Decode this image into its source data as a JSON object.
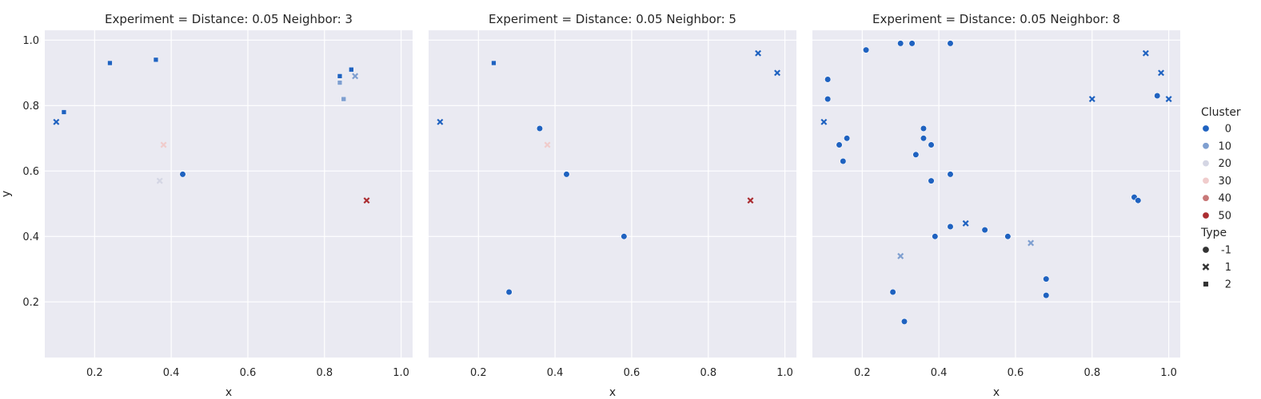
{
  "chart_data": {
    "type": "scatter",
    "hue_title": "Cluster",
    "style_title": "Type",
    "hue_legend": [
      {
        "label": "0",
        "value": 0,
        "color": "#1f62c0"
      },
      {
        "label": "10",
        "value": 10,
        "color": "#7f9fd0"
      },
      {
        "label": "20",
        "value": 20,
        "color": "#d4d6e4"
      },
      {
        "label": "30",
        "value": 30,
        "color": "#f0cccc"
      },
      {
        "label": "40",
        "value": 40,
        "color": "#c87878"
      },
      {
        "label": "50",
        "value": 50,
        "color": "#ab2d31"
      }
    ],
    "style_legend": [
      {
        "label": "-1",
        "marker": "circle"
      },
      {
        "label": "1",
        "marker": "x"
      },
      {
        "label": "2",
        "marker": "square"
      }
    ],
    "xlim": [
      0.07,
      1.03
    ],
    "ylim": [
      0.03,
      1.03
    ],
    "x_ticks": [
      0.2,
      0.4,
      0.6,
      0.8,
      1.0
    ],
    "x_tick_labels": [
      "0.2",
      "0.4",
      "0.6",
      "0.8",
      "1.0"
    ],
    "y_ticks": [
      0.2,
      0.4,
      0.6,
      0.8,
      1.0
    ],
    "y_tick_labels": [
      "0.2",
      "0.4",
      "0.6",
      "0.8",
      "1.0"
    ],
    "xlabel": "x",
    "ylabel": "y",
    "grid": true,
    "legend_placement": "right",
    "panels": [
      {
        "title": "Experiment = Distance: 0.05 Neighbor: 3",
        "points": [
          {
            "x": 0.43,
            "y": 0.59,
            "type": -1,
            "cluster": 0
          },
          {
            "x": 0.1,
            "y": 0.75,
            "type": 1,
            "cluster": 0
          },
          {
            "x": 0.37,
            "y": 0.57,
            "type": 1,
            "cluster": 20
          },
          {
            "x": 0.38,
            "y": 0.68,
            "type": 1,
            "cluster": 30
          },
          {
            "x": 0.91,
            "y": 0.51,
            "type": 1,
            "cluster": 50
          },
          {
            "x": 0.88,
            "y": 0.89,
            "type": 1,
            "cluster": 10
          },
          {
            "x": 0.36,
            "y": 0.94,
            "type": 2,
            "cluster": 0
          },
          {
            "x": 0.24,
            "y": 0.93,
            "type": 2,
            "cluster": 0
          },
          {
            "x": 0.12,
            "y": 0.78,
            "type": 2,
            "cluster": 0
          },
          {
            "x": 0.84,
            "y": 0.89,
            "type": 2,
            "cluster": 0
          },
          {
            "x": 0.84,
            "y": 0.87,
            "type": 2,
            "cluster": 10
          },
          {
            "x": 0.87,
            "y": 0.91,
            "type": 2,
            "cluster": 0
          },
          {
            "x": 0.85,
            "y": 0.82,
            "type": 2,
            "cluster": 10
          }
        ]
      },
      {
        "title": "Experiment = Distance: 0.05 Neighbor: 5",
        "points": [
          {
            "x": 0.43,
            "y": 0.59,
            "type": -1,
            "cluster": 0
          },
          {
            "x": 0.36,
            "y": 0.73,
            "type": -1,
            "cluster": 0
          },
          {
            "x": 0.58,
            "y": 0.4,
            "type": -1,
            "cluster": 0
          },
          {
            "x": 0.28,
            "y": 0.23,
            "type": -1,
            "cluster": 0
          },
          {
            "x": 0.1,
            "y": 0.75,
            "type": 1,
            "cluster": 0
          },
          {
            "x": 0.93,
            "y": 0.96,
            "type": 1,
            "cluster": 0
          },
          {
            "x": 0.98,
            "y": 0.9,
            "type": 1,
            "cluster": 0
          },
          {
            "x": 0.91,
            "y": 0.51,
            "type": 1,
            "cluster": 50
          },
          {
            "x": 0.38,
            "y": 0.68,
            "type": 1,
            "cluster": 30
          },
          {
            "x": 0.24,
            "y": 0.93,
            "type": 2,
            "cluster": 0
          }
        ]
      },
      {
        "title": "Experiment = Distance: 0.05 Neighbor: 8",
        "points": [
          {
            "x": 0.21,
            "y": 0.97,
            "type": -1,
            "cluster": 0
          },
          {
            "x": 0.3,
            "y": 0.99,
            "type": -1,
            "cluster": 0
          },
          {
            "x": 0.33,
            "y": 0.99,
            "type": -1,
            "cluster": 0
          },
          {
            "x": 0.43,
            "y": 0.99,
            "type": -1,
            "cluster": 0
          },
          {
            "x": 0.11,
            "y": 0.88,
            "type": -1,
            "cluster": 0
          },
          {
            "x": 0.11,
            "y": 0.82,
            "type": -1,
            "cluster": 0
          },
          {
            "x": 0.14,
            "y": 0.68,
            "type": -1,
            "cluster": 0
          },
          {
            "x": 0.16,
            "y": 0.7,
            "type": -1,
            "cluster": 0
          },
          {
            "x": 0.15,
            "y": 0.63,
            "type": -1,
            "cluster": 0
          },
          {
            "x": 0.36,
            "y": 0.73,
            "type": -1,
            "cluster": 0
          },
          {
            "x": 0.36,
            "y": 0.7,
            "type": -1,
            "cluster": 0
          },
          {
            "x": 0.38,
            "y": 0.68,
            "type": -1,
            "cluster": 0
          },
          {
            "x": 0.34,
            "y": 0.65,
            "type": -1,
            "cluster": 0
          },
          {
            "x": 0.43,
            "y": 0.59,
            "type": -1,
            "cluster": 0
          },
          {
            "x": 0.38,
            "y": 0.57,
            "type": -1,
            "cluster": 0
          },
          {
            "x": 0.97,
            "y": 0.83,
            "type": -1,
            "cluster": 0
          },
          {
            "x": 0.91,
            "y": 0.52,
            "type": -1,
            "cluster": 0
          },
          {
            "x": 0.92,
            "y": 0.51,
            "type": -1,
            "cluster": 0
          },
          {
            "x": 0.43,
            "y": 0.43,
            "type": -1,
            "cluster": 0
          },
          {
            "x": 0.52,
            "y": 0.42,
            "type": -1,
            "cluster": 0
          },
          {
            "x": 0.39,
            "y": 0.4,
            "type": -1,
            "cluster": 0
          },
          {
            "x": 0.58,
            "y": 0.4,
            "type": -1,
            "cluster": 0
          },
          {
            "x": 0.28,
            "y": 0.23,
            "type": -1,
            "cluster": 0
          },
          {
            "x": 0.68,
            "y": 0.27,
            "type": -1,
            "cluster": 0
          },
          {
            "x": 0.68,
            "y": 0.22,
            "type": -1,
            "cluster": 0
          },
          {
            "x": 0.31,
            "y": 0.14,
            "type": -1,
            "cluster": 0
          },
          {
            "x": 0.47,
            "y": 0.44,
            "type": 1,
            "cluster": 0
          },
          {
            "x": 0.1,
            "y": 0.75,
            "type": 1,
            "cluster": 0
          },
          {
            "x": 0.94,
            "y": 0.96,
            "type": 1,
            "cluster": 0
          },
          {
            "x": 0.98,
            "y": 0.9,
            "type": 1,
            "cluster": 0
          },
          {
            "x": 1.0,
            "y": 0.82,
            "type": 1,
            "cluster": 0
          },
          {
            "x": 0.8,
            "y": 0.82,
            "type": 1,
            "cluster": 0
          },
          {
            "x": 0.64,
            "y": 0.38,
            "type": 1,
            "cluster": 10
          },
          {
            "x": 0.3,
            "y": 0.34,
            "type": 1,
            "cluster": 10
          }
        ]
      }
    ]
  }
}
